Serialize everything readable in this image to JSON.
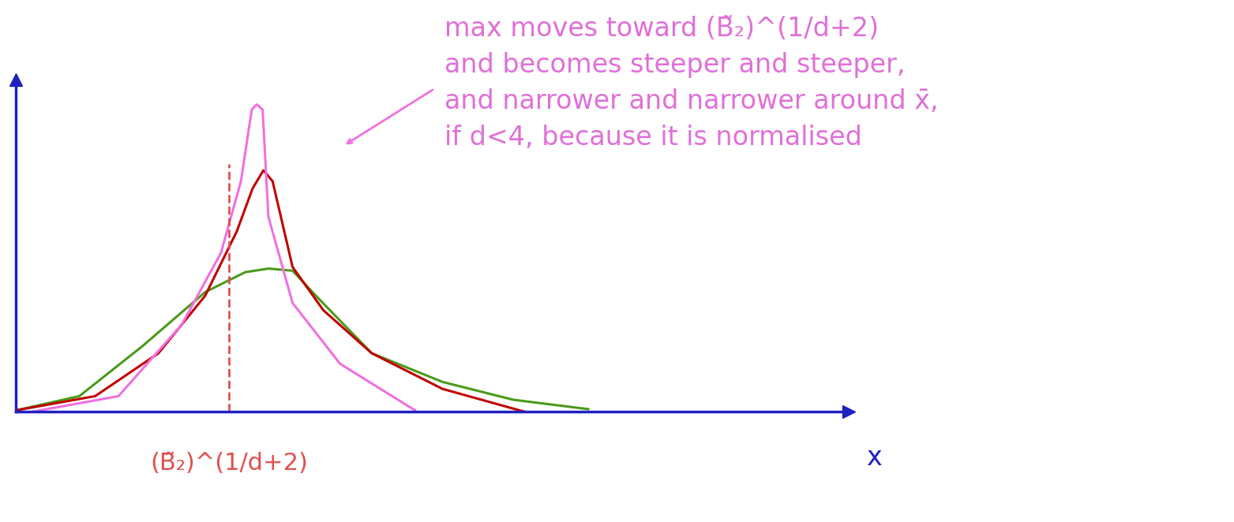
{
  "chart_data": {
    "type": "line",
    "annotation": "max moves toward (B̃₂)^(1/d+2)\nand becomes steeper and steeper,\nand narrower and narrower around x̄,\nif d<4, because it is normalised",
    "x_label": "x",
    "tick_labels": false,
    "xlim": [
      0,
      100
    ],
    "ylim": [
      0,
      110
    ],
    "vline": {
      "x": 25.6,
      "y_top": 82,
      "label": "(B̃₂)^(1/d+2)",
      "color": "#e05050",
      "line_style": "dashed"
    },
    "arrow_target": {
      "x": 39.3,
      "y": 88
    },
    "series": [
      {
        "color": "#4a9a1a",
        "x": [
          0,
          7.6,
          15.2,
          22.7,
          27.5,
          30.3,
          33.2,
          36.0,
          42.7,
          51.2,
          59.7,
          68.7
        ],
        "values": [
          0.5,
          5.2,
          21.8,
          39.6,
          46.2,
          47.4,
          46.7,
          38.4,
          19.4,
          9.9,
          4.0,
          0.9
        ]
      },
      {
        "color": "#c00000",
        "x": [
          0,
          9.5,
          17.1,
          22.7,
          26.5,
          28.4,
          29.7,
          30.8,
          33.2,
          36.9,
          42.7,
          51.2,
          61.1
        ],
        "values": [
          0.5,
          5.2,
          19.4,
          38.4,
          59.7,
          73.9,
          79.9,
          76.3,
          47.9,
          33.6,
          19.4,
          7.6,
          0
        ]
      },
      {
        "color": "#f070e0",
        "x": [
          1.9,
          12.3,
          19.9,
          24.6,
          27.0,
          28.3,
          28.9,
          29.6,
          30.3,
          33.2,
          38.9,
          47.9
        ],
        "values": [
          0,
          5.2,
          28.9,
          52.6,
          76.3,
          100,
          101.7,
          100,
          64.5,
          36.0,
          15.9,
          0.5
        ]
      }
    ]
  }
}
